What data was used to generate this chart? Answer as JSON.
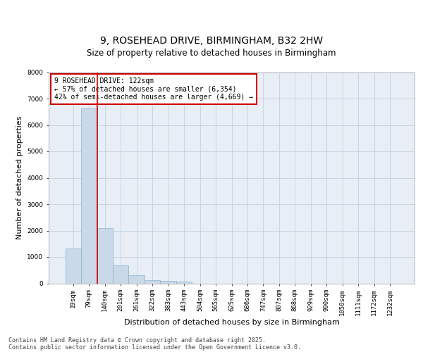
{
  "title_line1": "9, ROSEHEAD DRIVE, BIRMINGHAM, B32 2HW",
  "title_line2": "Size of property relative to detached houses in Birmingham",
  "xlabel": "Distribution of detached houses by size in Birmingham",
  "ylabel": "Number of detached properties",
  "categories": [
    "19sqm",
    "79sqm",
    "140sqm",
    "201sqm",
    "261sqm",
    "322sqm",
    "383sqm",
    "443sqm",
    "504sqm",
    "565sqm",
    "625sqm",
    "686sqm",
    "747sqm",
    "807sqm",
    "868sqm",
    "929sqm",
    "990sqm",
    "1050sqm",
    "1111sqm",
    "1172sqm",
    "1232sqm"
  ],
  "values": [
    1320,
    6630,
    2100,
    680,
    310,
    130,
    90,
    60,
    0,
    0,
    0,
    0,
    0,
    0,
    0,
    0,
    0,
    0,
    0,
    0,
    0
  ],
  "bar_color": "#c9d9e8",
  "bar_edge_color": "#8ab0cc",
  "vline_color": "#cc0000",
  "vline_pos": 1.5,
  "annotation_text": "9 ROSEHEAD DRIVE: 122sqm\n← 57% of detached houses are smaller (6,354)\n42% of semi-detached houses are larger (4,669) →",
  "annotation_box_facecolor": "#ffffff",
  "annotation_box_edgecolor": "#cc0000",
  "ylim": [
    0,
    8000
  ],
  "yticks": [
    0,
    1000,
    2000,
    3000,
    4000,
    5000,
    6000,
    7000,
    8000
  ],
  "grid_color": "#c8d4e4",
  "bg_color": "#e8eef6",
  "footer_line1": "Contains HM Land Registry data © Crown copyright and database right 2025.",
  "footer_line2": "Contains public sector information licensed under the Open Government Licence v3.0.",
  "title_fontsize": 10,
  "subtitle_fontsize": 8.5,
  "tick_fontsize": 6.5,
  "ylabel_fontsize": 8,
  "xlabel_fontsize": 8,
  "annotation_fontsize": 7,
  "footer_fontsize": 6
}
